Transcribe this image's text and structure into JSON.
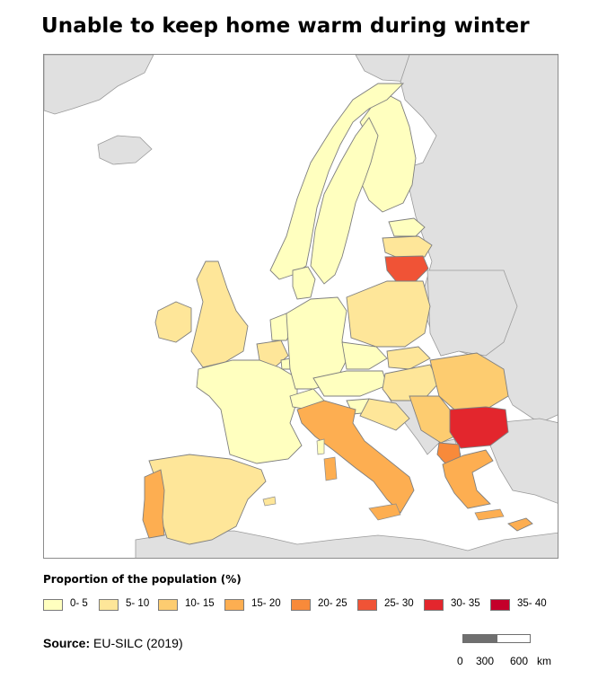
{
  "title": "Unable to keep home warm during winter",
  "legend": {
    "title": "Proportion of the population (%)",
    "items": [
      {
        "label": "0- 5",
        "color": "#ffffbf"
      },
      {
        "label": "5- 10",
        "color": "#fee699"
      },
      {
        "label": "10- 15",
        "color": "#fdcc70"
      },
      {
        "label": "15- 20",
        "color": "#fdae51"
      },
      {
        "label": "20- 25",
        "color": "#f88a3a"
      },
      {
        "label": "25- 30",
        "color": "#f05336"
      },
      {
        "label": "30- 35",
        "color": "#e3262d"
      },
      {
        "label": "35- 40",
        "color": "#c4002a"
      }
    ]
  },
  "source": {
    "label": "Source:",
    "value": "EU-SILC (2019)"
  },
  "scale": {
    "labels": [
      "0",
      "300",
      "600",
      "km"
    ]
  },
  "map": {
    "non_eu_fill": "#e0e0e0",
    "border_color": "#7f7f7f",
    "countries": [
      {
        "name": "Finland",
        "class": "0- 5"
      },
      {
        "name": "Sweden",
        "class": "0- 5"
      },
      {
        "name": "Norway",
        "class": "0- 5"
      },
      {
        "name": "Estonia",
        "class": "0- 5"
      },
      {
        "name": "Latvia",
        "class": "5- 10"
      },
      {
        "name": "Lithuania",
        "class": "25- 30"
      },
      {
        "name": "Ireland",
        "class": "5- 10"
      },
      {
        "name": "United Kingdom",
        "class": "5- 10"
      },
      {
        "name": "Denmark",
        "class": "0- 5"
      },
      {
        "name": "Netherlands",
        "class": "0- 5"
      },
      {
        "name": "Belgium",
        "class": "5- 10"
      },
      {
        "name": "Luxembourg",
        "class": "0- 5"
      },
      {
        "name": "France",
        "class": "0- 5"
      },
      {
        "name": "Germany",
        "class": "0- 5"
      },
      {
        "name": "Poland",
        "class": "5- 10"
      },
      {
        "name": "Czechia",
        "class": "0- 5"
      },
      {
        "name": "Slovakia",
        "class": "5- 10"
      },
      {
        "name": "Austria",
        "class": "0- 5"
      },
      {
        "name": "Switzerland",
        "class": "0- 5"
      },
      {
        "name": "Hungary",
        "class": "5- 10"
      },
      {
        "name": "Slovenia",
        "class": "0- 5"
      },
      {
        "name": "Croatia",
        "class": "5- 10"
      },
      {
        "name": "Romania",
        "class": "10- 15"
      },
      {
        "name": "Serbia",
        "class": "10- 15"
      },
      {
        "name": "Bulgaria",
        "class": "30- 35"
      },
      {
        "name": "North Macedonia",
        "class": "20- 25"
      },
      {
        "name": "Greece",
        "class": "15- 20"
      },
      {
        "name": "Italy",
        "class": "15- 20"
      },
      {
        "name": "Spain",
        "class": "5- 10"
      },
      {
        "name": "Portugal",
        "class": "15- 20"
      },
      {
        "name": "Cyprus",
        "class": "15- 20"
      }
    ]
  }
}
